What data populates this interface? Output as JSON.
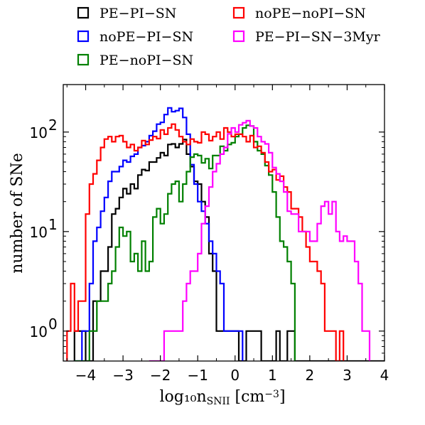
{
  "chart_data": {
    "type": "histogram",
    "xlabel": "log₁₀n",
    "xlabel_sub": "SNII",
    "xlabel_unit": "[cm",
    "xlabel_unit_sup": "−3",
    "xlabel_unit_end": "]",
    "ylabel": "number of  SNe",
    "y_scale": "log",
    "xlim": [
      -4.6,
      4.0
    ],
    "ylim": [
      0.5,
      300
    ],
    "x_ticks": [
      -4,
      -3,
      -2,
      -1,
      0,
      1,
      2,
      3,
      4
    ],
    "x_tick_labels": [
      "−4",
      "−3",
      "−2",
      "−1",
      "0",
      "1",
      "2",
      "3",
      "4"
    ],
    "y_ticks": [
      1,
      10,
      100
    ],
    "y_tick_labels": [
      {
        "base": "10",
        "exp": "0"
      },
      {
        "base": "10",
        "exp": "1"
      },
      {
        "base": "10",
        "exp": "2"
      }
    ],
    "bin_width": 0.1,
    "series": [
      {
        "name": "PE−PI−SN",
        "color": "#000000",
        "x0": -4.3,
        "counts": [
          1,
          1,
          1,
          0,
          0,
          2,
          2,
          4,
          4,
          7,
          15,
          17,
          22,
          27,
          24,
          30,
          27,
          37,
          42,
          41,
          50,
          50,
          55,
          62,
          58,
          75,
          76,
          70,
          76,
          84,
          60,
          45,
          32,
          30,
          20,
          14,
          6,
          4,
          1,
          1,
          1,
          1,
          1,
          1,
          0,
          0,
          1,
          1,
          1,
          1,
          0,
          0,
          0,
          0,
          1,
          0,
          0,
          1,
          1,
          0,
          0,
          0,
          0,
          0,
          0,
          0,
          0,
          0,
          0,
          0,
          0,
          0,
          0,
          0,
          0,
          0,
          0,
          0,
          0,
          0,
          0,
          0,
          0
        ]
      },
      {
        "name": "noPE−PI−SN",
        "color": "#0000ff",
        "x0": -4.3,
        "counts": [
          0.5,
          0.5,
          1,
          1,
          3,
          8,
          11,
          16,
          22,
          32,
          40,
          40,
          45,
          52,
          50,
          57,
          60,
          70,
          73,
          80,
          92,
          102,
          120,
          125,
          150,
          175,
          160,
          164,
          173,
          140,
          95,
          47,
          30,
          20,
          16,
          12,
          8,
          6,
          4,
          3,
          1,
          1,
          1,
          1,
          1
        ]
      },
      {
        "name": "PE−noPI−SN",
        "color": "#008000",
        "x0": -4.3,
        "counts": [
          0,
          0,
          0,
          0.5,
          1,
          1,
          2,
          2,
          2,
          3,
          4,
          7,
          11,
          9,
          10,
          5,
          6,
          4,
          8,
          4,
          5,
          14,
          17,
          12,
          15,
          24,
          30,
          32,
          20,
          30,
          40,
          56,
          60,
          58,
          49,
          54,
          43,
          58,
          58,
          72,
          65,
          75,
          78,
          90,
          95,
          110,
          117,
          115,
          80,
          65,
          60,
          46,
          37,
          25,
          14,
          8,
          7,
          5,
          3
        ]
      },
      {
        "name": "noPE−noPI−SN",
        "color": "#ff0000",
        "x0": -4.5,
        "counts": [
          1,
          3,
          1,
          2,
          2,
          15,
          30,
          38,
          52,
          70,
          85,
          90,
          80,
          90,
          92,
          80,
          70,
          75,
          65,
          70,
          82,
          75,
          83,
          90,
          86,
          105,
          95,
          110,
          120,
          105,
          90,
          80,
          75,
          85,
          80,
          78,
          100,
          95,
          82,
          90,
          100,
          85,
          110,
          100,
          90,
          95,
          95,
          90,
          80,
          92,
          70,
          72,
          62,
          50,
          40,
          42,
          33,
          36,
          28,
          25,
          17,
          17,
          14,
          10,
          7,
          5,
          5,
          4,
          3,
          1,
          1,
          1,
          0.5,
          1
        ]
      },
      {
        "name": "PE−PI−SN−3Myr",
        "color": "#ff00ff",
        "x0": -2.3,
        "counts": [
          0,
          0,
          0,
          0.5,
          1,
          1,
          1,
          1,
          1,
          2,
          3,
          4,
          4,
          6,
          12,
          18,
          28,
          40,
          48,
          60,
          70,
          96,
          110,
          100,
          118,
          124,
          130,
          115,
          110,
          90,
          80,
          76,
          62,
          44,
          38,
          32,
          25,
          16,
          15,
          15,
          10,
          10,
          10,
          8,
          8,
          12,
          18,
          20,
          15,
          20,
          10,
          8,
          9,
          8,
          8,
          5,
          3,
          1,
          1
        ]
      }
    ],
    "legend_placement": "top, two columns"
  }
}
